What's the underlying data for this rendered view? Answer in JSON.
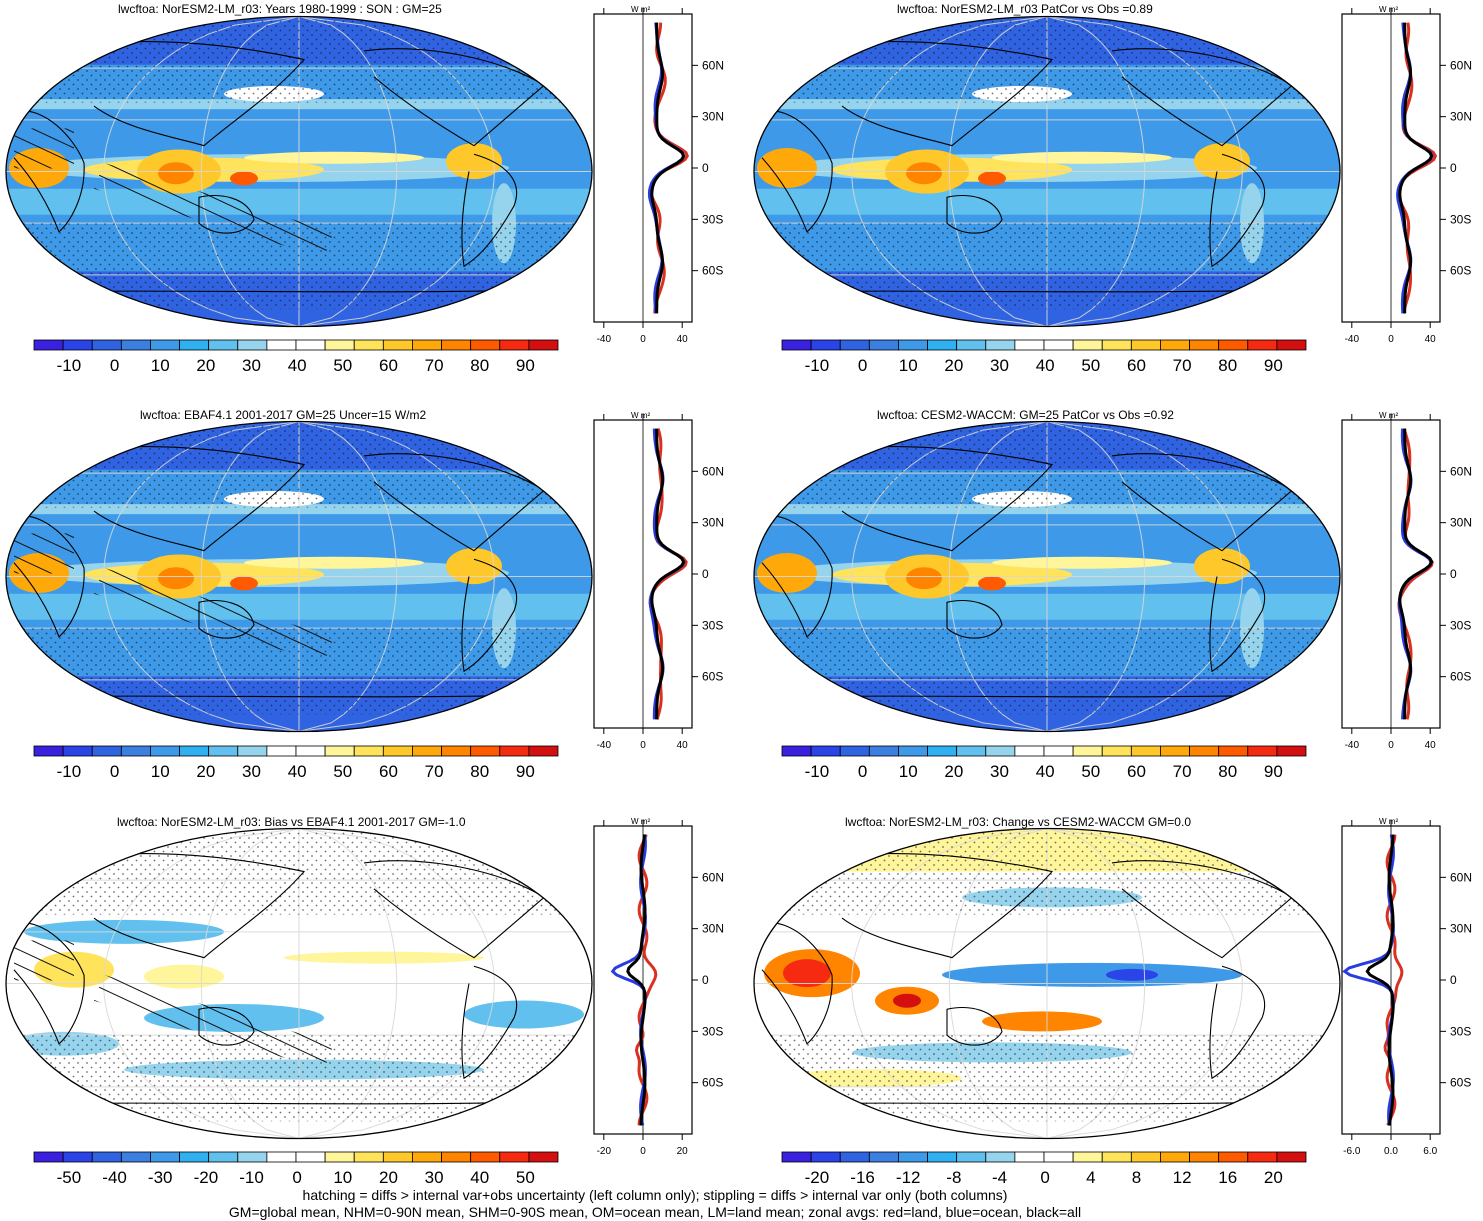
{
  "colors": {
    "colorbar": [
      "#3a21e0",
      "#2a44e8",
      "#2f63e2",
      "#3b7fe0",
      "#3e9ae8",
      "#2fb0f0",
      "#61c0ee",
      "#96d4ee",
      "#ffffff",
      "#ffffff",
      "#fff59a",
      "#ffe35a",
      "#ffc82a",
      "#ffa80a",
      "#ff8400",
      "#ff5a00",
      "#f52a10",
      "#d40f10"
    ],
    "land_line": "#d93020",
    "ocean_line": "#2a3ce0",
    "all_line": "#000000",
    "grid": "#d8d8d8"
  },
  "panels": [
    {
      "title": "lwcftoa: NorESM2-LM_r03: Years 1980-1999 : SON : GM=25",
      "cbar_labels": [
        "-10",
        "0",
        "10",
        "20",
        "30",
        "40",
        "50",
        "60",
        "70",
        "80",
        "90"
      ],
      "zonal_ticks": [
        "-40",
        "0",
        "40"
      ],
      "zonal_units": "W m²",
      "lat_labels": [
        "60N",
        "30N",
        "0",
        "30S",
        "60S"
      ],
      "field": "mean",
      "hatched": true
    },
    {
      "title": "lwcftoa: NorESM2-LM_r03 PatCor vs Obs =0.89",
      "cbar_labels": [
        "-10",
        "0",
        "10",
        "20",
        "30",
        "40",
        "50",
        "60",
        "70",
        "80",
        "90"
      ],
      "zonal_ticks": [
        "-40",
        "0",
        "40"
      ],
      "zonal_units": "W m²",
      "lat_labels": [
        "60N",
        "30N",
        "0",
        "30S",
        "60S"
      ],
      "field": "mean",
      "hatched": false
    },
    {
      "title": "lwcftoa: EBAF4.1 2001-2017 GM=25 Uncer=15 W/m2",
      "cbar_labels": [
        "-10",
        "0",
        "10",
        "20",
        "30",
        "40",
        "50",
        "60",
        "70",
        "80",
        "90"
      ],
      "zonal_ticks": [
        "-40",
        "0",
        "40"
      ],
      "zonal_units": "W m²",
      "lat_labels": [
        "60N",
        "30N",
        "0",
        "30S",
        "60S"
      ],
      "field": "mean",
      "hatched": true
    },
    {
      "title": "lwcftoa: CESM2-WACCM: GM=25 PatCor vs Obs =0.92",
      "cbar_labels": [
        "-10",
        "0",
        "10",
        "20",
        "30",
        "40",
        "50",
        "60",
        "70",
        "80",
        "90"
      ],
      "zonal_ticks": [
        "-40",
        "0",
        "40"
      ],
      "zonal_units": "W m²",
      "lat_labels": [
        "60N",
        "30N",
        "0",
        "30S",
        "60S"
      ],
      "field": "mean",
      "hatched": false
    },
    {
      "title": "lwcftoa: NorESM2-LM_r03: Bias vs EBAF4.1 2001-2017  GM=-1.0",
      "cbar_labels": [
        "-50",
        "-40",
        "-30",
        "-20",
        "-10",
        "0",
        "10",
        "20",
        "30",
        "40",
        "50"
      ],
      "zonal_ticks": [
        "-20",
        "0",
        "20"
      ],
      "zonal_units": "W m²",
      "lat_labels": [
        "60N",
        "30N",
        "0",
        "30S",
        "60S"
      ],
      "field": "diff",
      "hatched": true
    },
    {
      "title": "lwcftoa: NorESM2-LM_r03: Change vs CESM2-WACCM GM=0.0",
      "cbar_labels": [
        "-20",
        "-16",
        "-12",
        "-8",
        "-4",
        "0",
        "4",
        "8",
        "12",
        "16",
        "20"
      ],
      "zonal_ticks": [
        "-6.0",
        "0.0",
        "6.0"
      ],
      "zonal_units": "W m²",
      "lat_labels": [
        "60N",
        "30N",
        "0",
        "30S",
        "60S"
      ],
      "field": "diff",
      "hatched": false
    }
  ],
  "footer": [
    "hatching = diffs > internal var+obs uncertainty (left column only); stippling = diffs > internal var only (both columns)",
    "GM=global mean, NHM=0-90N mean, SHM=0-90S mean, OM=ocean mean, LM=land mean; zonal avgs: red=land, blue=ocean, black=all"
  ]
}
